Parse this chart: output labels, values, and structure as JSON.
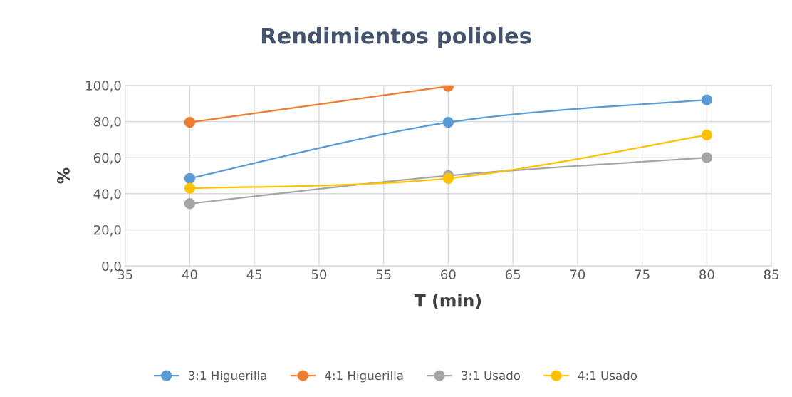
{
  "chart_data": {
    "type": "line",
    "title": "Rendimientos polioles",
    "xlabel": "T (min)",
    "ylabel": "%",
    "x": [
      40,
      60,
      80
    ],
    "series": [
      {
        "name": "3:1 Higuerilla",
        "color": "#5b9bd5",
        "values": [
          48.5,
          79.5,
          92.0
        ]
      },
      {
        "name": "4:1 Higuerilla",
        "color": "#ed7d31",
        "values": [
          79.5,
          99.5,
          null
        ]
      },
      {
        "name": "3:1 Usado",
        "color": "#a5a5a5",
        "values": [
          34.5,
          50.0,
          60.0
        ]
      },
      {
        "name": "4:1 Usado",
        "color": "#ffc000",
        "values": [
          43.0,
          48.5,
          72.5
        ]
      }
    ],
    "xlim": [
      35,
      85
    ],
    "xticks": [
      35,
      40,
      45,
      50,
      55,
      60,
      65,
      70,
      75,
      80,
      85
    ],
    "ylim": [
      0,
      100
    ],
    "yticks": [
      {
        "value": 0,
        "label": "0,0"
      },
      {
        "value": 20,
        "label": "20,0"
      },
      {
        "value": 40,
        "label": "40,0"
      },
      {
        "value": 60,
        "label": "60,0"
      },
      {
        "value": 80,
        "label": "80,0"
      },
      {
        "value": 100,
        "label": "100,0"
      }
    ],
    "grid": true,
    "legend": "bottom",
    "marker": "circle",
    "line_style": "solid"
  }
}
